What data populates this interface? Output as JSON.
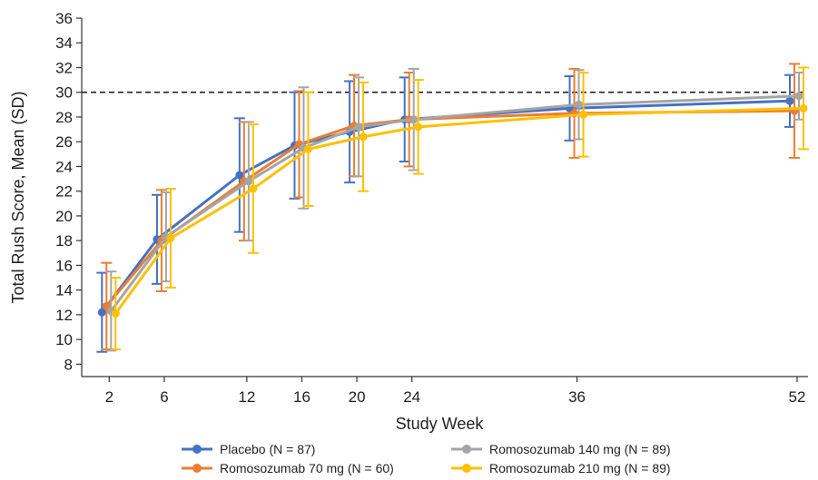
{
  "chart_data": {
    "type": "line",
    "xlabel": "Study Week",
    "ylabel": "Total Rush Score, Mean (SD)",
    "x": [
      2,
      6,
      12,
      16,
      20,
      24,
      36,
      52
    ],
    "xlim": [
      0,
      52
    ],
    "ylim": [
      7,
      36
    ],
    "xticks": [
      "2",
      "6",
      "12",
      "16",
      "20",
      "24",
      "36",
      "52"
    ],
    "yticks": [
      "8",
      "10",
      "12",
      "14",
      "16",
      "18",
      "20",
      "22",
      "24",
      "26",
      "28",
      "30",
      "32",
      "34",
      "36"
    ],
    "reference_line": {
      "y": 30,
      "style": "dashed",
      "color": "#222222"
    },
    "grid": false,
    "legend_position": "bottom",
    "series": [
      {
        "name": "Placebo (N = 87)",
        "color": "#4472C4",
        "values": [
          12.2,
          18.1,
          23.3,
          25.7,
          26.8,
          27.8,
          28.7,
          29.3
        ],
        "sd": [
          3.2,
          3.6,
          4.6,
          4.3,
          4.1,
          3.4,
          2.6,
          2.1
        ]
      },
      {
        "name": "Romosozumab 70 mg (N = 60)",
        "color": "#ED7D31",
        "values": [
          12.7,
          18.0,
          22.8,
          25.8,
          27.3,
          27.8,
          28.3,
          28.5
        ],
        "sd": [
          3.5,
          4.1,
          4.8,
          4.3,
          4.1,
          3.8,
          3.6,
          3.8
        ]
      },
      {
        "name": "Romosozumab 140 mg (N = 89)",
        "color": "#A5A5A5",
        "values": [
          12.3,
          18.3,
          22.8,
          25.5,
          27.2,
          27.8,
          29.0,
          29.7
        ],
        "sd": [
          3.2,
          3.6,
          4.8,
          4.9,
          4.0,
          4.1,
          2.8,
          1.9
        ]
      },
      {
        "name": "Romosozumab 210 mg (N = 89)",
        "color": "#FFC000",
        "values": [
          12.1,
          18.2,
          22.2,
          25.4,
          26.4,
          27.2,
          28.2,
          28.7
        ],
        "sd": [
          2.9,
          4.0,
          5.2,
          4.6,
          4.4,
          3.8,
          3.4,
          3.3
        ]
      }
    ]
  }
}
